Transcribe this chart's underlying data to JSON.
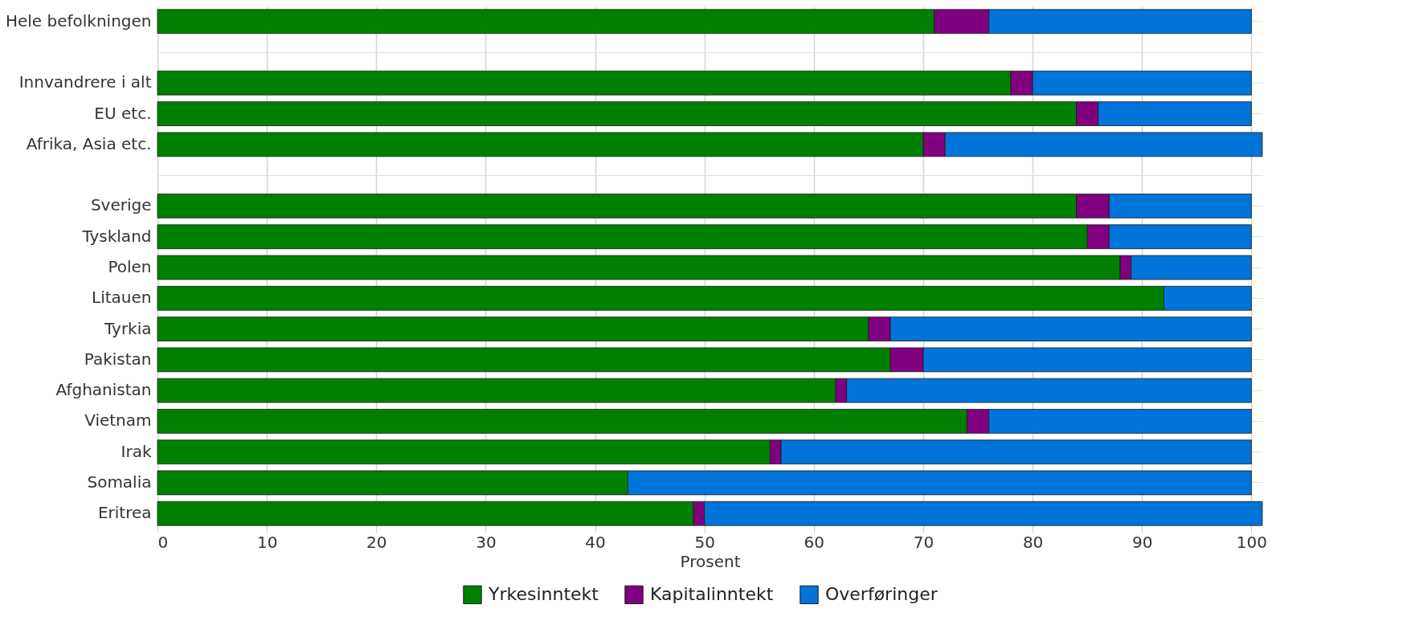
{
  "chart_data": {
    "type": "bar",
    "orientation": "horizontal",
    "stacked": true,
    "xlabel": "Prosent",
    "categories": [
      "Hele befolkningen",
      null,
      "Innvandrere i alt",
      "EU etc.",
      "Afrika, Asia etc.",
      null,
      "Sverige",
      "Tyskland",
      "Polen",
      "Litauen",
      "Tyrkia",
      "Pakistan",
      "Afghanistan",
      "Vietnam",
      "Irak",
      "Somalia",
      "Eritrea"
    ],
    "series": [
      {
        "name": "Yrkesinntekt",
        "color": "#008000",
        "values": [
          71,
          null,
          78,
          84,
          70,
          null,
          84,
          85,
          88,
          92,
          65,
          67,
          62,
          74,
          56,
          43,
          49
        ]
      },
      {
        "name": "Kapitalinntekt",
        "color": "#800080",
        "values": [
          5,
          null,
          2,
          2,
          2,
          null,
          3,
          2,
          1,
          0,
          2,
          3,
          1,
          2,
          1,
          0,
          1
        ]
      },
      {
        "name": "Overføringer",
        "color": "#0074d9",
        "values": [
          24,
          null,
          20,
          14,
          29,
          null,
          13,
          13,
          11,
          8,
          33,
          30,
          37,
          24,
          43,
          57,
          51
        ]
      }
    ],
    "xlim": [
      0,
      101
    ],
    "xticks": [
      0,
      10,
      20,
      30,
      40,
      50,
      60,
      70,
      80,
      90,
      100
    ],
    "grid": "x",
    "legend": "bottom"
  }
}
